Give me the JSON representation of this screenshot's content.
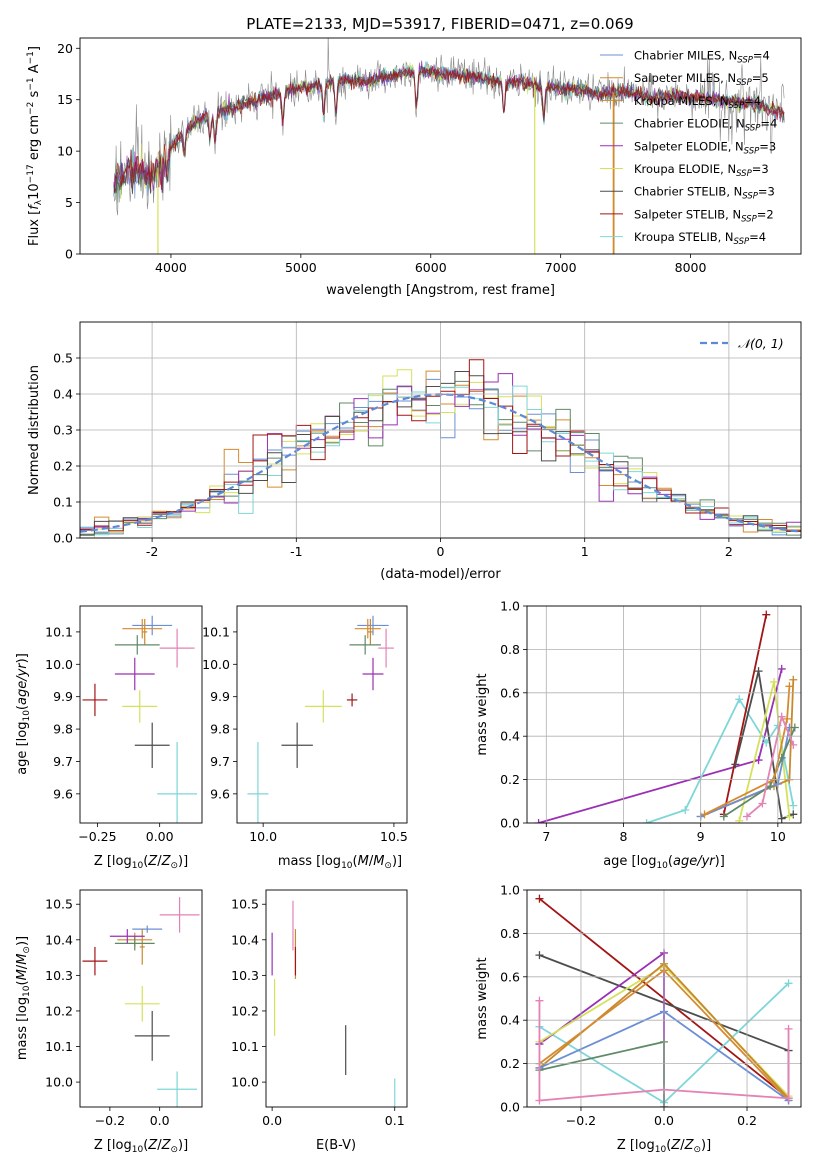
{
  "figure": {
    "title": "PLATE=2133, MJD=53917, FIBERID=0471, z=0.069"
  },
  "colors": {
    "Chabrier MILES": "#6b8fd6",
    "Salpeter MILES": "#d68a2e",
    "Kroupa MILES": "#c8892d",
    "Chabrier ELODIE": "#5f8a67",
    "Salpeter ELODIE": "#9b30b5",
    "Kroupa ELODIE": "#d6e15a",
    "Chabrier STELIB": "#4d4d4d",
    "Salpeter STELIB": "#a31515",
    "Kroupa STELIB": "#7fd6d8",
    "pink": "#e482b6"
  },
  "chart_data": [
    {
      "id": "spectrum",
      "type": "line",
      "xlabel": "wavelength [Angstrom, rest frame]",
      "ylabel": "Flux [f_λ 10^-17 erg cm^-2 s^-1 A^-1]",
      "xlim": [
        3300,
        8850
      ],
      "ylim": [
        0,
        21
      ],
      "xticks": [
        4000,
        5000,
        6000,
        7000,
        8000
      ],
      "yticks": [
        0,
        5,
        10,
        15,
        20
      ],
      "grid": false,
      "legend_position": "top-right",
      "continuum": {
        "x": [
          3560,
          3700,
          3850,
          3950,
          4100,
          4300,
          4500,
          4700,
          4900,
          5100,
          5300,
          5500,
          5700,
          5900,
          6100,
          6300,
          6500,
          6700,
          6900,
          7100,
          7300,
          7500,
          7700,
          7900,
          8100,
          8300,
          8500,
          8700
        ],
        "y": [
          6.8,
          8.2,
          7.3,
          9.5,
          12.0,
          13.6,
          14.3,
          15.1,
          15.9,
          16.4,
          16.9,
          16.8,
          17.3,
          17.9,
          17.5,
          17.3,
          16.8,
          16.7,
          16.2,
          16.0,
          15.6,
          15.8,
          15.2,
          15.4,
          15.1,
          14.9,
          14.6,
          13.6
        ]
      },
      "legend": [
        {
          "key": "Chabrier MILES",
          "label": "Chabrier MILES, N",
          "sub": "SSP",
          "count": "=4"
        },
        {
          "key": "Salpeter MILES",
          "label": "Salpeter MILES, N",
          "sub": "SSP",
          "count": "=5"
        },
        {
          "key": "Kroupa MILES",
          "label": "Kroupa MILES, N",
          "sub": "SSP",
          "count": "=4"
        },
        {
          "key": "Chabrier ELODIE",
          "label": "Chabrier ELODIE, N",
          "sub": "SSP",
          "count": "=4"
        },
        {
          "key": "Salpeter ELODIE",
          "label": "Salpeter ELODIE, N",
          "sub": "SSP",
          "count": "=3"
        },
        {
          "key": "Kroupa ELODIE",
          "label": "Kroupa ELODIE, N",
          "sub": "SSP",
          "count": "=3"
        },
        {
          "key": "Chabrier STELIB",
          "label": "Chabrier STELIB, N",
          "sub": "SSP",
          "count": "=3"
        },
        {
          "key": "Salpeter STELIB",
          "label": "Salpeter STELIB, N",
          "sub": "SSP",
          "count": "=2"
        },
        {
          "key": "Kroupa STELIB",
          "label": "Kroupa STELIB, N",
          "sub": "SSP",
          "count": "=4"
        }
      ]
    },
    {
      "id": "residuals",
      "type": "line",
      "xlabel": "(data-model)/error",
      "ylabel": "Normed distribution",
      "xlim": [
        -2.5,
        2.5
      ],
      "ylim": [
        0,
        0.6
      ],
      "xticks": [
        -2,
        -1,
        0,
        1,
        2
      ],
      "yticks": [
        0.0,
        0.1,
        0.2,
        0.3,
        0.4,
        0.5
      ],
      "grid": true,
      "legend_label": "𝒩(0, 1)",
      "legend_position": "top-right"
    },
    {
      "id": "age_vs_Z",
      "type": "scatter",
      "xlabel": "Z [log10(Z/Z⊙)]",
      "ylabel": "age  [log10(age/yr)]",
      "xlim": [
        -0.32,
        0.17
      ],
      "ylim": [
        9.51,
        10.18
      ],
      "xticks": [
        -0.25,
        0.0
      ],
      "xticklabels": [
        "−0.25",
        "0.00"
      ],
      "yticks": [
        9.6,
        9.7,
        9.8,
        9.9,
        10.0,
        10.1
      ],
      "points": [
        {
          "key": "Chabrier MILES",
          "x": -0.03,
          "y": 10.12,
          "xerr": 0.08,
          "yerr": 0.03
        },
        {
          "key": "Salpeter MILES",
          "x": -0.07,
          "y": 10.11,
          "xerr": 0.08,
          "yerr": 0.03
        },
        {
          "key": "Kroupa MILES",
          "x": -0.06,
          "y": 10.1,
          "xerr": 0.01,
          "yerr": 0.04
        },
        {
          "key": "Chabrier ELODIE",
          "x": -0.09,
          "y": 10.06,
          "xerr": 0.09,
          "yerr": 0.03
        },
        {
          "key": "Salpeter ELODIE",
          "x": -0.1,
          "y": 9.97,
          "xerr": 0.08,
          "yerr": 0.05
        },
        {
          "key": "Kroupa ELODIE",
          "x": -0.08,
          "y": 9.87,
          "xerr": 0.07,
          "yerr": 0.05
        },
        {
          "key": "Chabrier STELIB",
          "x": -0.03,
          "y": 9.75,
          "xerr": 0.07,
          "yerr": 0.07
        },
        {
          "key": "Salpeter STELIB",
          "x": -0.26,
          "y": 9.89,
          "xerr": 0.05,
          "yerr": 0.05
        },
        {
          "key": "Kroupa STELIB",
          "x": 0.07,
          "y": 9.6,
          "xerr": 0.08,
          "yerr": 0.16
        },
        {
          "key": "pink",
          "x": 0.07,
          "y": 10.05,
          "xerr": 0.07,
          "yerr": 0.06
        }
      ]
    },
    {
      "id": "age_vs_mass",
      "type": "scatter",
      "xlabel": "mass [log10(M/M⊙)]",
      "ylabel": "",
      "xlim": [
        9.9,
        10.55
      ],
      "ylim": [
        9.51,
        10.18
      ],
      "xticks": [
        10.0,
        10.5
      ],
      "xticklabels": [
        "10.0",
        "10.5"
      ],
      "yticks": [
        9.6,
        9.7,
        9.8,
        9.9,
        10.0,
        10.1
      ],
      "points": [
        {
          "key": "Chabrier MILES",
          "x": 10.42,
          "y": 10.12,
          "xerr": 0.06,
          "yerr": 0.03
        },
        {
          "key": "Salpeter MILES",
          "x": 10.4,
          "y": 10.11,
          "xerr": 0.05,
          "yerr": 0.03
        },
        {
          "key": "Kroupa MILES",
          "x": 10.41,
          "y": 10.1,
          "xerr": 0.01,
          "yerr": 0.04
        },
        {
          "key": "Chabrier ELODIE",
          "x": 10.39,
          "y": 10.06,
          "xerr": 0.06,
          "yerr": 0.03
        },
        {
          "key": "Salpeter ELODIE",
          "x": 10.42,
          "y": 9.97,
          "xerr": 0.04,
          "yerr": 0.05
        },
        {
          "key": "Kroupa ELODIE",
          "x": 10.23,
          "y": 9.87,
          "xerr": 0.07,
          "yerr": 0.05
        },
        {
          "key": "Chabrier STELIB",
          "x": 10.13,
          "y": 9.75,
          "xerr": 0.06,
          "yerr": 0.07
        },
        {
          "key": "Salpeter STELIB",
          "x": 10.34,
          "y": 9.89,
          "xerr": 0.02,
          "yerr": 0.02
        },
        {
          "key": "Kroupa STELIB",
          "x": 9.98,
          "y": 9.6,
          "xerr": 0.04,
          "yerr": 0.16
        },
        {
          "key": "pink",
          "x": 10.47,
          "y": 10.05,
          "xerr": 0.03,
          "yerr": 0.06
        }
      ]
    },
    {
      "id": "mass_weight_vs_age",
      "type": "line",
      "xlabel": "age  [log10(age/yr)]",
      "ylabel": "mass weight",
      "xlim": [
        6.75,
        10.3
      ],
      "ylim": [
        0,
        1.0
      ],
      "xticks": [
        7,
        8,
        9,
        10
      ],
      "yticks": [
        0.0,
        0.2,
        0.4,
        0.6,
        0.8,
        1.0
      ],
      "grid": true,
      "series": [
        {
          "key": "Salpeter ELODIE",
          "x": [
            6.9,
            9.75,
            10.05
          ],
          "y": [
            0.0,
            0.29,
            0.71
          ]
        },
        {
          "key": "Kroupa STELIB",
          "x": [
            8.3,
            8.8,
            9.5,
            9.85,
            10.0,
            10.2
          ],
          "y": [
            0.0,
            0.06,
            0.57,
            0.37,
            0.45,
            0.08
          ]
        },
        {
          "key": "Salpeter STELIB",
          "x": [
            9.3,
            9.85
          ],
          "y": [
            0.04,
            0.96
          ]
        },
        {
          "key": "Chabrier STELIB",
          "x": [
            9.45,
            9.75,
            10.05,
            10.2
          ],
          "y": [
            0.27,
            0.7,
            0.02,
            0.04
          ]
        },
        {
          "key": "Kroupa ELODIE",
          "x": [
            9.5,
            9.95,
            10.15
          ],
          "y": [
            0.01,
            0.65,
            0.03
          ]
        },
        {
          "key": "Kroupa MILES",
          "x": [
            9.0,
            9.95,
            10.15,
            10.2
          ],
          "y": [
            0.03,
            0.17,
            0.2,
            0.66
          ]
        },
        {
          "key": "Chabrier MILES",
          "x": [
            9.0,
            10.0,
            10.15
          ],
          "y": [
            0.03,
            0.18,
            0.44
          ]
        },
        {
          "key": "Chabrier ELODIE",
          "x": [
            9.3,
            9.9,
            10.05,
            10.22
          ],
          "y": [
            0.03,
            0.17,
            0.3,
            0.44
          ]
        },
        {
          "key": "Salpeter MILES",
          "x": [
            9.05,
            9.95,
            10.12,
            10.15
          ],
          "y": [
            0.04,
            0.2,
            0.48,
            0.63
          ]
        },
        {
          "key": "pink",
          "x": [
            9.6,
            9.8,
            10.05,
            10.2
          ],
          "y": [
            0.03,
            0.09,
            0.49,
            0.36
          ]
        }
      ]
    },
    {
      "id": "mass_vs_Z",
      "type": "scatter",
      "xlabel": "Z [log10(Z/Z⊙)]",
      "ylabel": "mass [log10(M/M⊙)]",
      "xlim": [
        -0.32,
        0.17
      ],
      "ylim": [
        9.93,
        10.54
      ],
      "xticks": [
        -0.2,
        0.0
      ],
      "xticklabels": [
        "−0.2",
        "0.0"
      ],
      "yticks": [
        10.0,
        10.1,
        10.2,
        10.3,
        10.4,
        10.5
      ],
      "points": [
        {
          "key": "Chabrier MILES",
          "x": -0.05,
          "y": 10.43,
          "xerr": 0.06,
          "yerr": 0.01
        },
        {
          "key": "Salpeter MILES",
          "x": -0.1,
          "y": 10.4,
          "xerr": 0.07,
          "yerr": 0.02
        },
        {
          "key": "Kroupa MILES",
          "x": -0.07,
          "y": 10.38,
          "xerr": 0.01,
          "yerr": 0.05
        },
        {
          "key": "Chabrier ELODIE",
          "x": -0.1,
          "y": 10.39,
          "xerr": 0.08,
          "yerr": 0.02
        },
        {
          "key": "Salpeter ELODIE",
          "x": -0.13,
          "y": 10.41,
          "xerr": 0.07,
          "yerr": 0.02
        },
        {
          "key": "Kroupa ELODIE",
          "x": -0.07,
          "y": 10.22,
          "xerr": 0.07,
          "yerr": 0.05
        },
        {
          "key": "Chabrier STELIB",
          "x": -0.03,
          "y": 10.13,
          "xerr": 0.07,
          "yerr": 0.07
        },
        {
          "key": "Salpeter STELIB",
          "x": -0.26,
          "y": 10.34,
          "xerr": 0.05,
          "yerr": 0.04
        },
        {
          "key": "Kroupa STELIB",
          "x": 0.07,
          "y": 9.98,
          "xerr": 0.08,
          "yerr": 0.05
        },
        {
          "key": "pink",
          "x": 0.08,
          "y": 10.47,
          "xerr": 0.08,
          "yerr": 0.05
        }
      ]
    },
    {
      "id": "mass_vs_ebv",
      "type": "scatter",
      "xlabel": "E(B-V)",
      "ylabel": "",
      "xlim": [
        -0.005,
        0.11
      ],
      "ylim": [
        9.93,
        10.54
      ],
      "xticks": [
        0.0,
        0.1
      ],
      "xticklabels": [
        "0.0",
        "0.1"
      ],
      "yticks": [
        10.0,
        10.1,
        10.2,
        10.3,
        10.4,
        10.5
      ],
      "points": [
        {
          "key": "Salpeter ELODIE",
          "x": 0.0,
          "y": 10.36,
          "xerr": 0.0,
          "yerr": 0.06
        },
        {
          "key": "Kroupa ELODIE",
          "x": 0.002,
          "y": 10.21,
          "xerr": 0.0,
          "yerr": 0.08
        },
        {
          "key": "pink",
          "x": 0.017,
          "y": 10.44,
          "xerr": 0.0,
          "yerr": 0.07
        },
        {
          "key": "Kroupa MILES",
          "x": 0.019,
          "y": 10.36,
          "xerr": 0.0,
          "yerr": 0.07
        },
        {
          "key": "Salpeter STELIB",
          "x": 0.019,
          "y": 10.34,
          "xerr": 0.0,
          "yerr": 0.04
        },
        {
          "key": "Chabrier STELIB",
          "x": 0.06,
          "y": 10.09,
          "xerr": 0.0,
          "yerr": 0.07
        },
        {
          "key": "Kroupa STELIB",
          "x": 0.1,
          "y": 9.96,
          "xerr": 0.0,
          "yerr": 0.05
        }
      ]
    },
    {
      "id": "mass_weight_vs_Z",
      "type": "line",
      "xlabel": "Z [log10(Z/Z⊙)]",
      "ylabel": "mass weight",
      "xlim": [
        -0.33,
        0.33
      ],
      "ylim": [
        0,
        1.0
      ],
      "xticks": [
        -0.2,
        0.0,
        0.2
      ],
      "xticklabels": [
        "−0.2",
        "0.0",
        "0.2"
      ],
      "yticks": [
        0.0,
        0.2,
        0.4,
        0.6,
        0.8,
        1.0
      ],
      "grid": true,
      "series": [
        {
          "key": "Salpeter STELIB",
          "x": [
            -0.3,
            0.3
          ],
          "y": [
            0.96,
            0.04
          ]
        },
        {
          "key": "Chabrier STELIB",
          "x": [
            -0.3,
            0.3,
            0.3
          ],
          "y": [
            0.7,
            0.26,
            0.04
          ]
        },
        {
          "key": "Kroupa STELIB",
          "x": [
            -0.3,
            0.0,
            0.3
          ],
          "y": [
            0.37,
            0.02,
            0.57
          ]
        },
        {
          "key": "Salpeter ELODIE",
          "x": [
            -0.3,
            0.0,
            0.0
          ],
          "y": [
            0.29,
            0.71,
            0.0
          ]
        },
        {
          "key": "Kroupa ELODIE",
          "x": [
            -0.3,
            0.0,
            0.3
          ],
          "y": [
            0.3,
            0.65,
            0.05
          ]
        },
        {
          "key": "Kroupa MILES",
          "x": [
            -0.3,
            0.0,
            0.3
          ],
          "y": [
            0.18,
            0.66,
            0.04
          ]
        },
        {
          "key": "Salpeter MILES",
          "x": [
            -0.3,
            0.0,
            0.3
          ],
          "y": [
            0.2,
            0.63,
            0.03
          ]
        },
        {
          "key": "Chabrier ELODIE",
          "x": [
            -0.3,
            0.0,
            0.0
          ],
          "y": [
            0.17,
            0.3,
            0.0
          ]
        },
        {
          "key": "Chabrier MILES",
          "x": [
            -0.3,
            0.0,
            0.3
          ],
          "y": [
            0.18,
            0.44,
            0.03
          ]
        },
        {
          "key": "pink",
          "x": [
            -0.3,
            -0.3,
            0.0,
            0.3,
            0.3
          ],
          "y": [
            0.49,
            0.03,
            0.08,
            0.04,
            0.36
          ]
        }
      ]
    }
  ]
}
